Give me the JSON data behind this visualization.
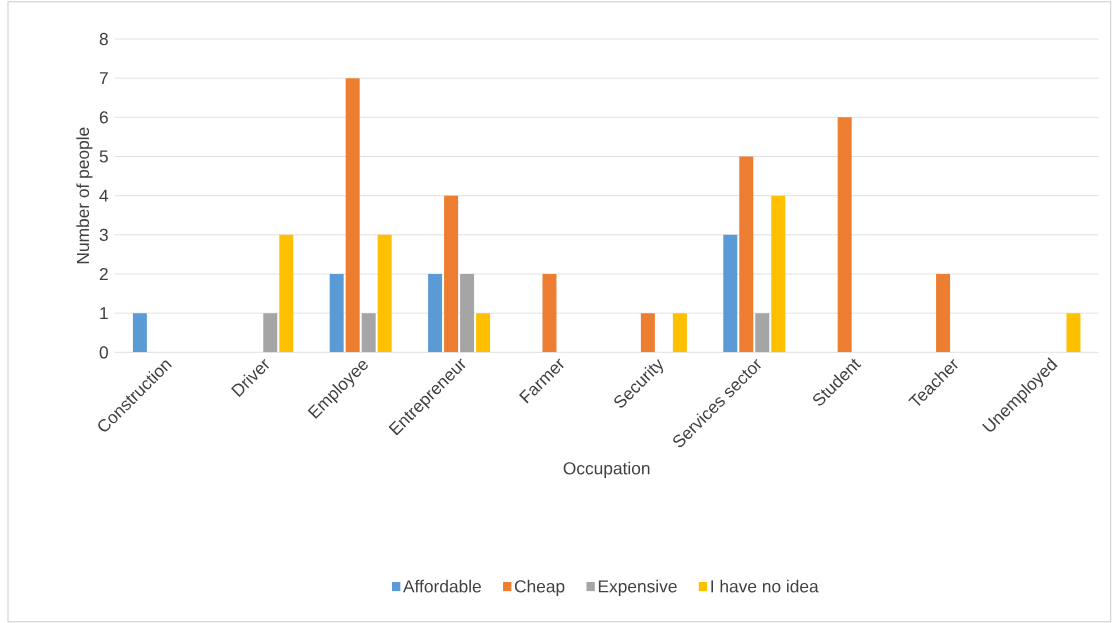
{
  "chart_data": {
    "type": "bar",
    "xlabel": "Occupation",
    "ylabel": "Number of people",
    "categories": [
      "Construction",
      "Driver",
      "Employee",
      "Entrepreneur",
      "Farmer",
      "Security",
      "Services sector",
      "Student",
      "Teacher",
      "Unemployed"
    ],
    "series": [
      {
        "name": "Affordable",
        "color": "#5b9bd5",
        "values": [
          1,
          0,
          2,
          2,
          0,
          0,
          3,
          0,
          0,
          0
        ]
      },
      {
        "name": "Cheap",
        "color": "#ed7d31",
        "values": [
          0,
          0,
          7,
          4,
          2,
          1,
          5,
          6,
          2,
          0
        ]
      },
      {
        "name": "Expensive",
        "color": "#a5a5a5",
        "values": [
          0,
          1,
          1,
          2,
          0,
          0,
          1,
          0,
          0,
          0
        ]
      },
      {
        "name": "I have no idea",
        "color": "#ffc000",
        "values": [
          0,
          3,
          3,
          1,
          0,
          1,
          4,
          0,
          0,
          1
        ]
      }
    ],
    "ylim": [
      0,
      8
    ],
    "yticks": [
      0,
      1,
      2,
      3,
      4,
      5,
      6,
      7,
      8
    ],
    "grid": "y",
    "legend": "bottom"
  }
}
